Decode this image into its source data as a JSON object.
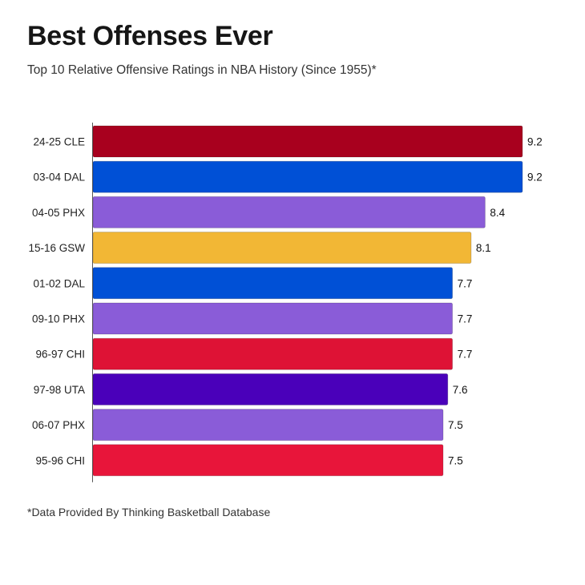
{
  "header": {
    "title": "Best Offenses Ever",
    "subtitle": "Top 10 Relative Offensive Ratings in NBA History (Since 1955)*"
  },
  "footnote": "*Data Provided By Thinking Basketball Database",
  "chart_data": {
    "type": "bar",
    "orientation": "horizontal",
    "title": "Best Offenses Ever",
    "subtitle": "Top 10 Relative Offensive Ratings in NBA History (Since 1955)*",
    "xlabel": "",
    "ylabel": "",
    "xlim": [
      0,
      9.2
    ],
    "grid": false,
    "legend": "none",
    "categories": [
      "24-25 CLE",
      "03-04 DAL",
      "04-05 PHX",
      "15-16 GSW",
      "01-02 DAL",
      "09-10 PHX",
      "96-97 CHI",
      "97-98 UTA",
      "06-07 PHX",
      "95-96 CHI"
    ],
    "values": [
      9.2,
      9.2,
      8.4,
      8.1,
      7.7,
      7.7,
      7.7,
      7.6,
      7.5,
      7.5
    ],
    "data_labels": [
      "9.2",
      "9.2",
      "8.4",
      "8.1",
      "7.7",
      "7.7",
      "7.7",
      "7.6",
      "7.5",
      "7.5"
    ],
    "colors": [
      "#A8001E",
      "#0050D6",
      "#8A5CD8",
      "#F2B735",
      "#0050D6",
      "#8A5CD8",
      "#DE1235",
      "#4A00BA",
      "#8A5CD8",
      "#E8153A"
    ]
  }
}
